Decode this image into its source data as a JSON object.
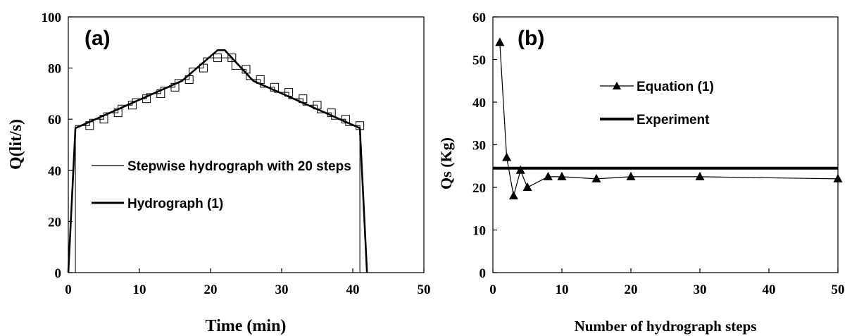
{
  "chart_data": [
    {
      "type": "line",
      "panel_label": "(a)",
      "xlabel": "Time (min)",
      "ylabel": "Q(lit/s)",
      "xlim": [
        0,
        50
      ],
      "ylim": [
        0,
        100
      ],
      "x_ticks": [
        0,
        10,
        20,
        30,
        40,
        50
      ],
      "y_ticks": [
        0,
        20,
        40,
        60,
        80,
        100
      ],
      "legend_position": "center-left",
      "series": [
        {
          "name": "Stepwise hydrograph with 20 steps",
          "style": "thin stepwise line",
          "steps": [
            {
              "x0": 1,
              "x1": 3,
              "y": 57.5
            },
            {
              "x0": 3,
              "x1": 5,
              "y": 60.0
            },
            {
              "x0": 5,
              "x1": 7,
              "y": 62.5
            },
            {
              "x0": 7,
              "x1": 9,
              "y": 65.5
            },
            {
              "x0": 9,
              "x1": 11,
              "y": 68.0
            },
            {
              "x0": 11,
              "x1": 13,
              "y": 70.0
            },
            {
              "x0": 13,
              "x1": 15,
              "y": 72.5
            },
            {
              "x0": 15,
              "x1": 17,
              "y": 75.5
            },
            {
              "x0": 17,
              "x1": 19,
              "y": 80.0
            },
            {
              "x0": 19,
              "x1": 21,
              "y": 84.0
            },
            {
              "x0": 21,
              "x1": 23,
              "y": 84.0
            },
            {
              "x0": 23,
              "x1": 25,
              "y": 79.5
            },
            {
              "x0": 25,
              "x1": 27,
              "y": 75.5
            },
            {
              "x0": 27,
              "x1": 29,
              "y": 72.5
            },
            {
              "x0": 29,
              "x1": 31,
              "y": 70.5
            },
            {
              "x0": 31,
              "x1": 33,
              "y": 68.0
            },
            {
              "x0": 33,
              "x1": 35,
              "y": 65.5
            },
            {
              "x0": 35,
              "x1": 37,
              "y": 62.5
            },
            {
              "x0": 37,
              "x1": 39,
              "y": 60.0
            },
            {
              "x0": 39,
              "x1": 41,
              "y": 57.5
            }
          ]
        },
        {
          "name": "Hydrograph (1)",
          "style": "thick line",
          "x": [
            0,
            1,
            16,
            21,
            22,
            26,
            41,
            42
          ],
          "y": [
            0,
            56.5,
            75,
            87,
            87,
            75,
            56.5,
            0
          ]
        }
      ]
    },
    {
      "type": "line",
      "panel_label": "(b)",
      "xlabel": "Number of hydrograph steps",
      "ylabel": "Qs (Kg)",
      "xlim": [
        0,
        50
      ],
      "ylim": [
        0,
        60
      ],
      "x_ticks": [
        0,
        10,
        20,
        30,
        40,
        50
      ],
      "y_ticks": [
        0,
        10,
        20,
        30,
        40,
        50,
        60
      ],
      "legend_position": "center",
      "series": [
        {
          "name": "Equation (1)",
          "style": "thin line with triangle markers",
          "x": [
            1,
            2,
            3,
            4,
            5,
            8,
            10,
            15,
            20,
            30,
            50
          ],
          "y": [
            54,
            27,
            18,
            24,
            20,
            22.5,
            22.5,
            22,
            22.5,
            22.5,
            22
          ]
        },
        {
          "name": "Experiment",
          "style": "thick horizontal line",
          "x": [
            0,
            50
          ],
          "y": [
            24.5,
            24.5
          ]
        }
      ]
    }
  ]
}
